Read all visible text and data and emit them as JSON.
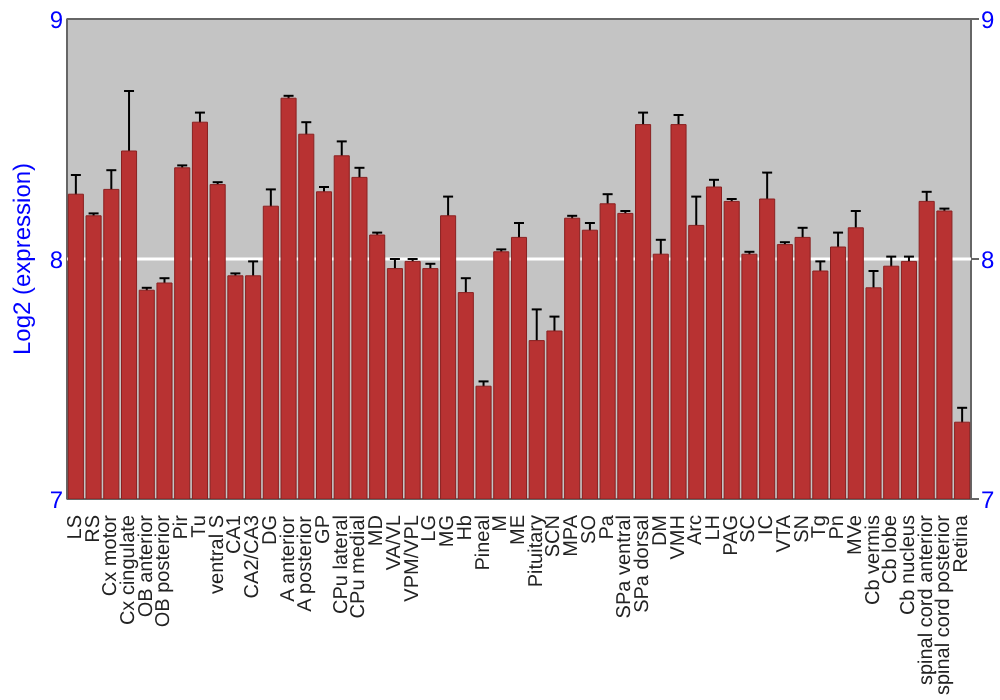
{
  "chart_data": {
    "type": "bar",
    "ylabel": "Log2 (expression)",
    "categories": [
      "LS",
      "RS",
      "Cx motor",
      "Cx cingulate",
      "OB anterior",
      "OB posterior",
      "Pir",
      "Tu",
      "ventral S",
      "CA1",
      "CA2/CA3",
      "DG",
      "A anterior",
      "A posterior",
      "GP",
      "CPu lateral",
      "CPu medial",
      "MD",
      "VA/VL",
      "VPM/VPL",
      "LG",
      "MG",
      "Hb",
      "Pineal",
      "M",
      "ME",
      "Pituitary",
      "SCN",
      "MPA",
      "SO",
      "Pa",
      "SPa ventral",
      "SPa dorsal",
      "DM",
      "VMH",
      "Arc",
      "LH",
      "PAG",
      "SC",
      "IC",
      "VTA",
      "SN",
      "Tg",
      "Pn",
      "MVe",
      "Cb vermis",
      "Cb lobe",
      "Cb nucleus",
      "spinal cord anterior",
      "spinal cord posterior",
      "Retina"
    ],
    "values": [
      8.27,
      8.18,
      8.29,
      8.45,
      7.87,
      7.9,
      8.38,
      8.57,
      8.31,
      7.93,
      7.93,
      8.22,
      8.67,
      8.52,
      8.28,
      8.43,
      8.34,
      8.1,
      7.96,
      7.99,
      7.96,
      8.18,
      7.86,
      7.47,
      8.03,
      8.09,
      7.66,
      7.7,
      8.17,
      8.12,
      8.23,
      8.19,
      8.56,
      8.02,
      8.56,
      8.14,
      8.3,
      8.24,
      8.02,
      8.25,
      8.06,
      8.09,
      7.95,
      8.05,
      8.13,
      7.88,
      7.97,
      7.99,
      8.24,
      8.2,
      7.32
    ],
    "errors": [
      0.08,
      0.01,
      0.08,
      0.25,
      0.01,
      0.02,
      0.01,
      0.04,
      0.01,
      0.01,
      0.06,
      0.07,
      0.01,
      0.05,
      0.02,
      0.06,
      0.04,
      0.01,
      0.04,
      0.01,
      0.02,
      0.08,
      0.06,
      0.02,
      0.01,
      0.06,
      0.13,
      0.06,
      0.01,
      0.03,
      0.04,
      0.01,
      0.05,
      0.06,
      0.04,
      0.12,
      0.03,
      0.01,
      0.01,
      0.11,
      0.01,
      0.04,
      0.04,
      0.06,
      0.07,
      0.07,
      0.04,
      0.02,
      0.04,
      0.01,
      0.06
    ],
    "color": "#b83232",
    "ylim": [
      7,
      9
    ],
    "yticks": [
      7,
      8,
      9
    ],
    "y2lim": [
      7,
      9
    ],
    "y2ticks": [
      7,
      8,
      9
    ],
    "grid": "y"
  }
}
